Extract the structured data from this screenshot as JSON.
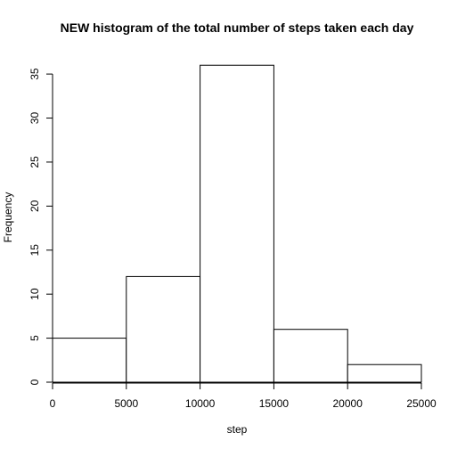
{
  "chart_data": {
    "type": "bar",
    "title": "NEW histogram of the total number of steps taken each day",
    "xlabel": "step",
    "ylabel": "Frequency",
    "bins": [
      {
        "start": 0,
        "end": 5000,
        "count": 5
      },
      {
        "start": 5000,
        "end": 10000,
        "count": 12
      },
      {
        "start": 10000,
        "end": 15000,
        "count": 36
      },
      {
        "start": 15000,
        "end": 20000,
        "count": 6
      },
      {
        "start": 20000,
        "end": 25000,
        "count": 2
      }
    ],
    "xlim": [
      0,
      25000
    ],
    "ylim": [
      0,
      37.44
    ],
    "x_ticks": [
      0,
      5000,
      10000,
      15000,
      20000,
      25000
    ],
    "y_ticks": [
      0,
      5,
      10,
      15,
      20,
      25,
      30,
      35
    ],
    "grid": false,
    "legend": "none",
    "colors": {
      "bar_fill": "#ffffff",
      "bar_stroke": "#000000",
      "axis": "#000000"
    }
  }
}
